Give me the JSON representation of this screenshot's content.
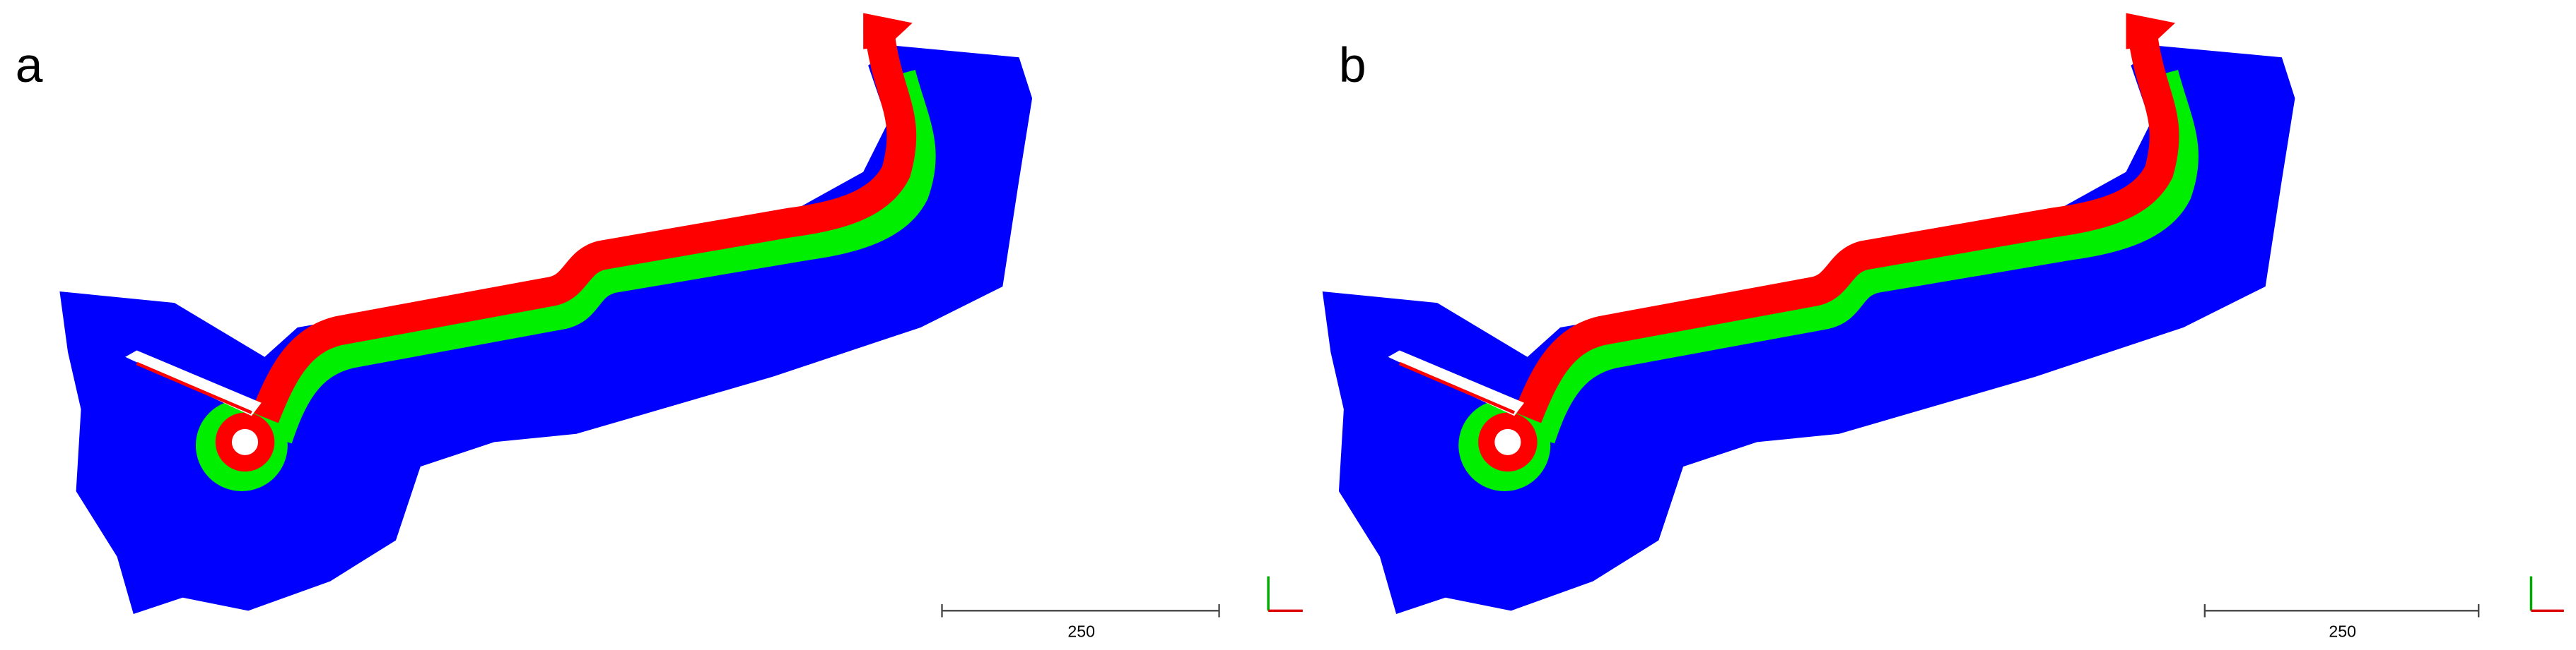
{
  "panels": [
    {
      "label": "a",
      "scale_label": "250"
    },
    {
      "label": "b",
      "scale_label": "250"
    }
  ]
}
